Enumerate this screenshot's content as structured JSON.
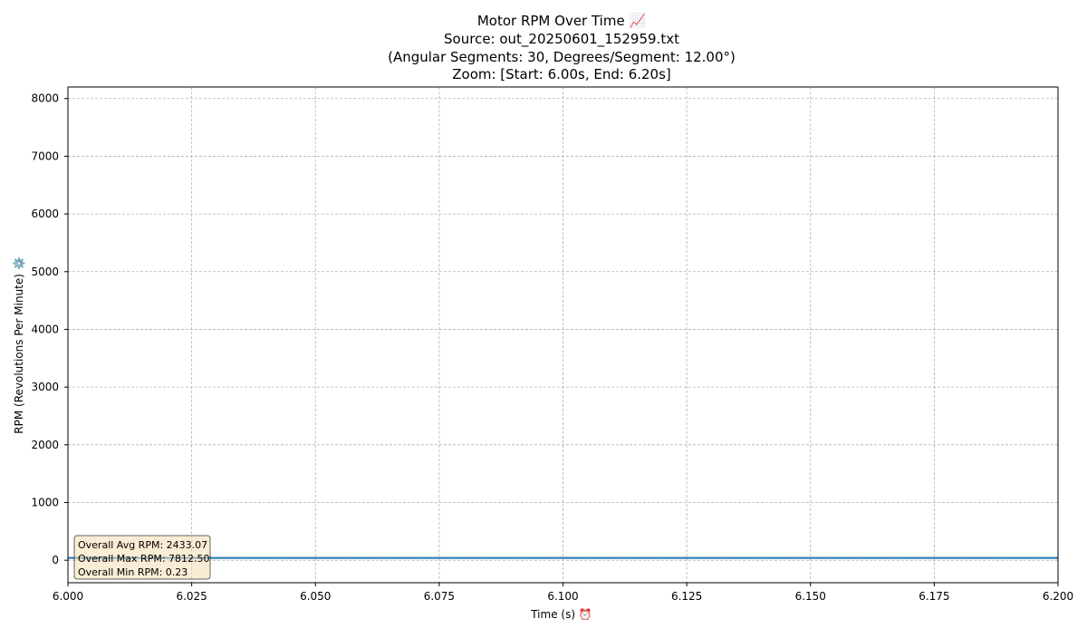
{
  "chart_data": {
    "type": "line",
    "title_lines": [
      "Motor RPM Over Time 📈",
      "Source: out_20250601_152959.txt",
      "(Angular Segments: 30, Degrees/Segment: 12.00°)",
      "Zoom: [Start: 6.00s, End: 6.20s]"
    ],
    "xlabel": "Time (s) ⏰",
    "ylabel": "RPM (Revolutions Per Minute) ⚙️",
    "xlim": [
      6.0,
      6.2
    ],
    "ylim": [
      -390,
      8200
    ],
    "x_ticks": [
      6.0,
      6.025,
      6.05,
      6.075,
      6.1,
      6.125,
      6.15,
      6.175,
      6.2
    ],
    "x_tick_labels": [
      "6.000",
      "6.025",
      "6.050",
      "6.075",
      "6.100",
      "6.125",
      "6.150",
      "6.175",
      "6.200"
    ],
    "y_ticks": [
      0,
      1000,
      2000,
      3000,
      4000,
      5000,
      6000,
      7000,
      8000
    ],
    "y_tick_labels": [
      "0",
      "1000",
      "2000",
      "3000",
      "4000",
      "5000",
      "6000",
      "7000",
      "8000"
    ],
    "grid": true,
    "series": [
      {
        "color": "#1f77b4",
        "x": [
          6.0,
          6.2
        ],
        "y": [
          40,
          40
        ]
      }
    ],
    "stats_lines": [
      "Overall Avg RPM: 2433.07",
      "Overall Max RPM: 7812.50",
      "Overall Min RPM: 0.23"
    ],
    "stats_position": "bottom-left"
  }
}
